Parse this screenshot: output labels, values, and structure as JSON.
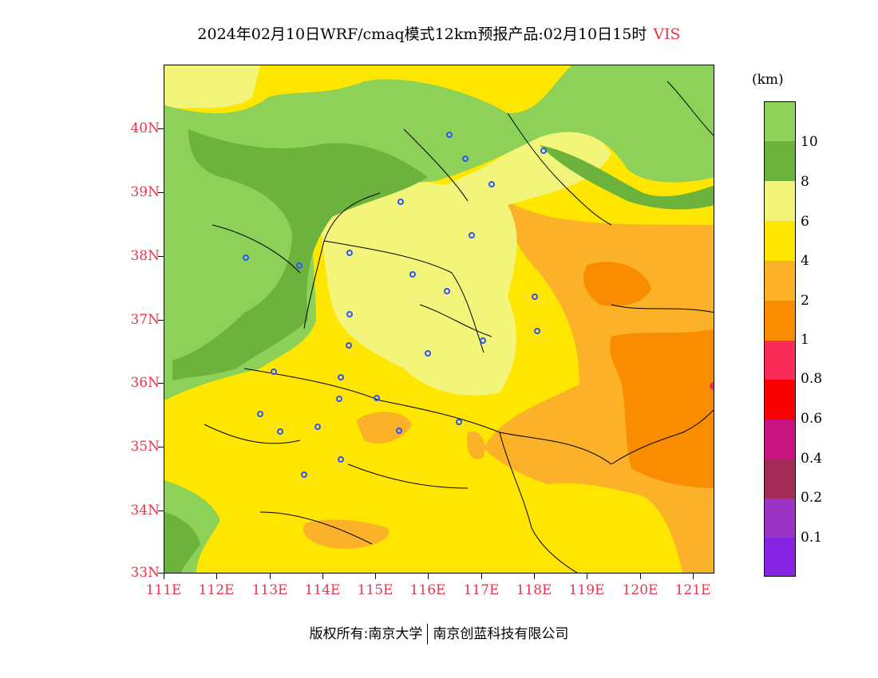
{
  "title": {
    "text": "2024年02月10日WRF/cmaq模式12km预报产品:02月10日15时",
    "variable": "VIS"
  },
  "map": {
    "lat_labels": [
      "40N",
      "39N",
      "38N",
      "37N",
      "36N",
      "35N",
      "34N",
      "33N"
    ],
    "lon_labels": [
      "111E",
      "112E",
      "113E",
      "114E",
      "115E",
      "116E",
      "117E",
      "118E",
      "119E",
      "120E",
      "121E"
    ],
    "lat_range": [
      33,
      41
    ],
    "lon_range": [
      111,
      121.4
    ],
    "colors": {
      "vis_10_plus": "#8ed159",
      "vis_8_10": "#6cb33d",
      "vis_6_8": "#f3f57a",
      "vis_4_6": "#ffe600",
      "vis_2_4": "#fbb128",
      "vis_1_2": "#fa8c00",
      "city_marker": "#2a56ff",
      "axis_label": "#e8364e"
    }
  },
  "colorbar": {
    "unit": "(km)",
    "labels": [
      "10",
      "8",
      "6",
      "4",
      "2",
      "1",
      "0.8",
      "0.6",
      "0.4",
      "0.2",
      "0.1"
    ],
    "colors": [
      "#8ed159",
      "#6cb33d",
      "#f3f57a",
      "#ffe600",
      "#fbb128",
      "#fa8c00",
      "#f92c5a",
      "#fb0000",
      "#c8147e",
      "#a62b58",
      "#9b34c6",
      "#8723e3"
    ]
  },
  "footer": {
    "left": "版权所有:南京大学",
    "right": "南京创蓝科技有限公司"
  }
}
